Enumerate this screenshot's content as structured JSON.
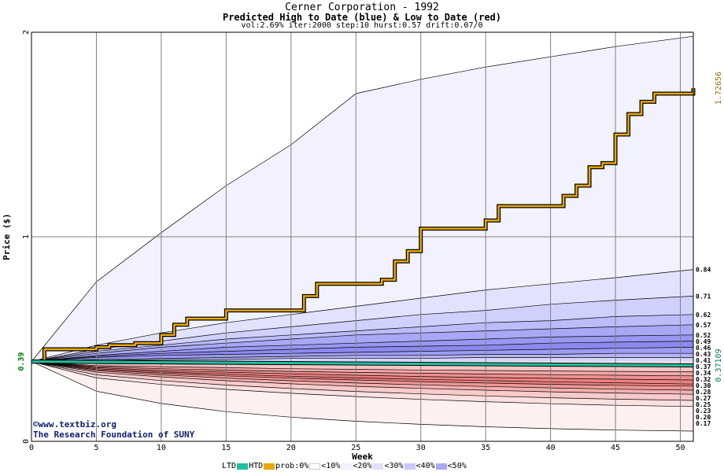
{
  "title": "Cerner Corporation - 1992",
  "subtitle": "Predicted High to Date (blue) &  Low to Date (red)",
  "params": "vol:2.69% iter:2000 step:10 hurst:0.57 drift:0.07/0",
  "credit": {
    "line1": "©www.textbiz.org",
    "line2": "The Research Foundation of SUNY"
  },
  "legend": {
    "ltd": "LTD",
    "htd": "HTD",
    "prob": "prob:0%",
    "b10": "<10%",
    "b20": "<20%",
    "b30": "<30%",
    "b40": "<40%",
    "b50": "<50%",
    "colors": {
      "ltd": "#20c0a0",
      "htd": "#e8a800",
      "b0": "#ffffff",
      "b10": "#f4f0ff",
      "b20": "#e0e0ff",
      "b30": "#c8c8ff",
      "b40": "#a8a8f8",
      "b50": "#8080f0"
    }
  },
  "chart_data": {
    "type": "area",
    "xlabel": "Week",
    "ylabel": "Price ($)",
    "xlim": [
      0,
      51
    ],
    "ylim": [
      0,
      2
    ],
    "xticks": [
      0,
      5,
      10,
      15,
      20,
      25,
      30,
      35,
      40,
      45,
      50
    ],
    "yticks": [
      0,
      1,
      2
    ],
    "grid": true,
    "start_price": 0.39,
    "start_label": "0.39",
    "htd_end_label": "1.72656",
    "ltd_end_label": "0.37109",
    "right_labels": [
      "0.84",
      "0.71",
      "0.62",
      "0.57",
      "0.52",
      "0.49",
      "0.46",
      "0.43",
      "0.41",
      "0.37",
      "0.34",
      "0.32",
      "0.30",
      "0.28",
      "0.27",
      "0.25",
      "0.23",
      "0.20",
      "0.17"
    ],
    "high_bands": {
      "x": [
        0,
        5,
        10,
        15,
        20,
        25,
        30,
        35,
        40,
        45,
        51
      ],
      "levels": {
        "max": [
          0.39,
          0.78,
          1.02,
          1.25,
          1.45,
          1.7,
          1.77,
          1.83,
          1.88,
          1.93,
          1.98
        ],
        "p84": [
          0.39,
          0.47,
          0.53,
          0.58,
          0.62,
          0.66,
          0.7,
          0.74,
          0.77,
          0.8,
          0.84
        ],
        "p71": [
          0.39,
          0.45,
          0.49,
          0.53,
          0.56,
          0.59,
          0.62,
          0.64,
          0.67,
          0.69,
          0.71
        ],
        "p62": [
          0.39,
          0.44,
          0.47,
          0.5,
          0.52,
          0.54,
          0.56,
          0.58,
          0.59,
          0.61,
          0.62
        ],
        "p57": [
          0.39,
          0.43,
          0.46,
          0.48,
          0.5,
          0.52,
          0.53,
          0.54,
          0.55,
          0.56,
          0.57
        ],
        "p52": [
          0.39,
          0.42,
          0.44,
          0.46,
          0.47,
          0.48,
          0.49,
          0.5,
          0.51,
          0.515,
          0.52
        ],
        "p49": [
          0.39,
          0.415,
          0.43,
          0.44,
          0.45,
          0.46,
          0.465,
          0.47,
          0.48,
          0.485,
          0.49
        ],
        "p46": [
          0.39,
          0.41,
          0.42,
          0.425,
          0.43,
          0.435,
          0.44,
          0.445,
          0.45,
          0.455,
          0.46
        ],
        "p43": [
          0.39,
          0.4,
          0.405,
          0.41,
          0.415,
          0.42,
          0.42,
          0.425,
          0.425,
          0.43,
          0.43
        ],
        "p41": [
          0.39,
          0.395,
          0.4,
          0.4,
          0.405,
          0.405,
          0.405,
          0.41,
          0.41,
          0.41,
          0.41
        ]
      }
    },
    "low_bands": {
      "x": [
        0,
        5,
        10,
        15,
        20,
        25,
        30,
        35,
        40,
        45,
        51
      ],
      "levels": {
        "p37": [
          0.39,
          0.38,
          0.378,
          0.376,
          0.375,
          0.374,
          0.373,
          0.372,
          0.371,
          0.37,
          0.37
        ],
        "p34": [
          0.39,
          0.37,
          0.365,
          0.36,
          0.355,
          0.352,
          0.349,
          0.346,
          0.344,
          0.342,
          0.34
        ],
        "p32": [
          0.39,
          0.365,
          0.355,
          0.348,
          0.342,
          0.337,
          0.333,
          0.329,
          0.326,
          0.323,
          0.32
        ],
        "p30": [
          0.39,
          0.36,
          0.347,
          0.338,
          0.33,
          0.323,
          0.317,
          0.312,
          0.308,
          0.304,
          0.3
        ],
        "p28": [
          0.39,
          0.355,
          0.34,
          0.328,
          0.318,
          0.31,
          0.303,
          0.297,
          0.291,
          0.286,
          0.28
        ],
        "p27": [
          0.39,
          0.35,
          0.333,
          0.32,
          0.309,
          0.3,
          0.292,
          0.285,
          0.279,
          0.274,
          0.27
        ],
        "p25": [
          0.39,
          0.345,
          0.325,
          0.309,
          0.296,
          0.285,
          0.276,
          0.268,
          0.261,
          0.255,
          0.25
        ],
        "p23": [
          0.39,
          0.338,
          0.315,
          0.296,
          0.281,
          0.269,
          0.259,
          0.25,
          0.242,
          0.236,
          0.23
        ],
        "p20": [
          0.39,
          0.325,
          0.297,
          0.275,
          0.258,
          0.244,
          0.232,
          0.222,
          0.213,
          0.206,
          0.2
        ],
        "p17": [
          0.39,
          0.31,
          0.278,
          0.254,
          0.235,
          0.219,
          0.205,
          0.194,
          0.184,
          0.176,
          0.17
        ],
        "min": [
          0.39,
          0.245,
          0.185,
          0.145,
          0.118,
          0.098,
          0.083,
          0.071,
          0.062,
          0.055,
          0.05
        ]
      }
    },
    "htd_path": {
      "x": [
        0,
        1,
        5,
        6,
        8,
        10,
        11,
        12,
        15,
        20,
        21,
        22,
        27,
        28,
        29,
        30,
        34,
        35,
        36,
        40,
        41,
        42,
        43,
        44,
        45,
        46,
        47,
        48,
        51
      ],
      "y": [
        0.39,
        0.45,
        0.46,
        0.47,
        0.48,
        0.52,
        0.57,
        0.6,
        0.64,
        0.64,
        0.71,
        0.77,
        0.79,
        0.88,
        0.93,
        1.04,
        1.04,
        1.08,
        1.15,
        1.15,
        1.2,
        1.25,
        1.34,
        1.36,
        1.5,
        1.6,
        1.66,
        1.7,
        1.72656
      ]
    },
    "ltd_path": {
      "x": [
        0,
        51
      ],
      "y": [
        0.39,
        0.37109
      ]
    }
  }
}
